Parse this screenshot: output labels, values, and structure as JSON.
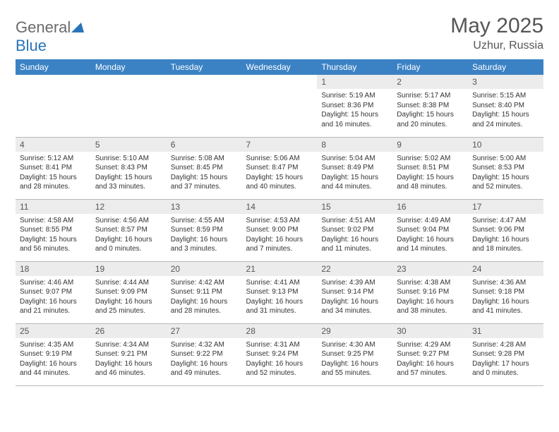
{
  "brand": {
    "part1": "General",
    "part2": "Blue"
  },
  "title": "May 2025",
  "location": "Uzhur, Russia",
  "colors": {
    "header_bg": "#3b82c4",
    "header_text": "#ffffff",
    "daynum_bg": "#ececec",
    "text_gray": "#555555",
    "border": "#b8b8b8"
  },
  "day_headers": [
    "Sunday",
    "Monday",
    "Tuesday",
    "Wednesday",
    "Thursday",
    "Friday",
    "Saturday"
  ],
  "weeks": [
    [
      null,
      null,
      null,
      null,
      {
        "n": "1",
        "sr": "5:19 AM",
        "ss": "8:36 PM",
        "dl": "15 hours and 16 minutes."
      },
      {
        "n": "2",
        "sr": "5:17 AM",
        "ss": "8:38 PM",
        "dl": "15 hours and 20 minutes."
      },
      {
        "n": "3",
        "sr": "5:15 AM",
        "ss": "8:40 PM",
        "dl": "15 hours and 24 minutes."
      }
    ],
    [
      {
        "n": "4",
        "sr": "5:12 AM",
        "ss": "8:41 PM",
        "dl": "15 hours and 28 minutes."
      },
      {
        "n": "5",
        "sr": "5:10 AM",
        "ss": "8:43 PM",
        "dl": "15 hours and 33 minutes."
      },
      {
        "n": "6",
        "sr": "5:08 AM",
        "ss": "8:45 PM",
        "dl": "15 hours and 37 minutes."
      },
      {
        "n": "7",
        "sr": "5:06 AM",
        "ss": "8:47 PM",
        "dl": "15 hours and 40 minutes."
      },
      {
        "n": "8",
        "sr": "5:04 AM",
        "ss": "8:49 PM",
        "dl": "15 hours and 44 minutes."
      },
      {
        "n": "9",
        "sr": "5:02 AM",
        "ss": "8:51 PM",
        "dl": "15 hours and 48 minutes."
      },
      {
        "n": "10",
        "sr": "5:00 AM",
        "ss": "8:53 PM",
        "dl": "15 hours and 52 minutes."
      }
    ],
    [
      {
        "n": "11",
        "sr": "4:58 AM",
        "ss": "8:55 PM",
        "dl": "15 hours and 56 minutes."
      },
      {
        "n": "12",
        "sr": "4:56 AM",
        "ss": "8:57 PM",
        "dl": "16 hours and 0 minutes."
      },
      {
        "n": "13",
        "sr": "4:55 AM",
        "ss": "8:59 PM",
        "dl": "16 hours and 3 minutes."
      },
      {
        "n": "14",
        "sr": "4:53 AM",
        "ss": "9:00 PM",
        "dl": "16 hours and 7 minutes."
      },
      {
        "n": "15",
        "sr": "4:51 AM",
        "ss": "9:02 PM",
        "dl": "16 hours and 11 minutes."
      },
      {
        "n": "16",
        "sr": "4:49 AM",
        "ss": "9:04 PM",
        "dl": "16 hours and 14 minutes."
      },
      {
        "n": "17",
        "sr": "4:47 AM",
        "ss": "9:06 PM",
        "dl": "16 hours and 18 minutes."
      }
    ],
    [
      {
        "n": "18",
        "sr": "4:46 AM",
        "ss": "9:07 PM",
        "dl": "16 hours and 21 minutes."
      },
      {
        "n": "19",
        "sr": "4:44 AM",
        "ss": "9:09 PM",
        "dl": "16 hours and 25 minutes."
      },
      {
        "n": "20",
        "sr": "4:42 AM",
        "ss": "9:11 PM",
        "dl": "16 hours and 28 minutes."
      },
      {
        "n": "21",
        "sr": "4:41 AM",
        "ss": "9:13 PM",
        "dl": "16 hours and 31 minutes."
      },
      {
        "n": "22",
        "sr": "4:39 AM",
        "ss": "9:14 PM",
        "dl": "16 hours and 34 minutes."
      },
      {
        "n": "23",
        "sr": "4:38 AM",
        "ss": "9:16 PM",
        "dl": "16 hours and 38 minutes."
      },
      {
        "n": "24",
        "sr": "4:36 AM",
        "ss": "9:18 PM",
        "dl": "16 hours and 41 minutes."
      }
    ],
    [
      {
        "n": "25",
        "sr": "4:35 AM",
        "ss": "9:19 PM",
        "dl": "16 hours and 44 minutes."
      },
      {
        "n": "26",
        "sr": "4:34 AM",
        "ss": "9:21 PM",
        "dl": "16 hours and 46 minutes."
      },
      {
        "n": "27",
        "sr": "4:32 AM",
        "ss": "9:22 PM",
        "dl": "16 hours and 49 minutes."
      },
      {
        "n": "28",
        "sr": "4:31 AM",
        "ss": "9:24 PM",
        "dl": "16 hours and 52 minutes."
      },
      {
        "n": "29",
        "sr": "4:30 AM",
        "ss": "9:25 PM",
        "dl": "16 hours and 55 minutes."
      },
      {
        "n": "30",
        "sr": "4:29 AM",
        "ss": "9:27 PM",
        "dl": "16 hours and 57 minutes."
      },
      {
        "n": "31",
        "sr": "4:28 AM",
        "ss": "9:28 PM",
        "dl": "17 hours and 0 minutes."
      }
    ]
  ],
  "labels": {
    "sunrise": "Sunrise: ",
    "sunset": "Sunset: ",
    "daylight": "Daylight: "
  }
}
